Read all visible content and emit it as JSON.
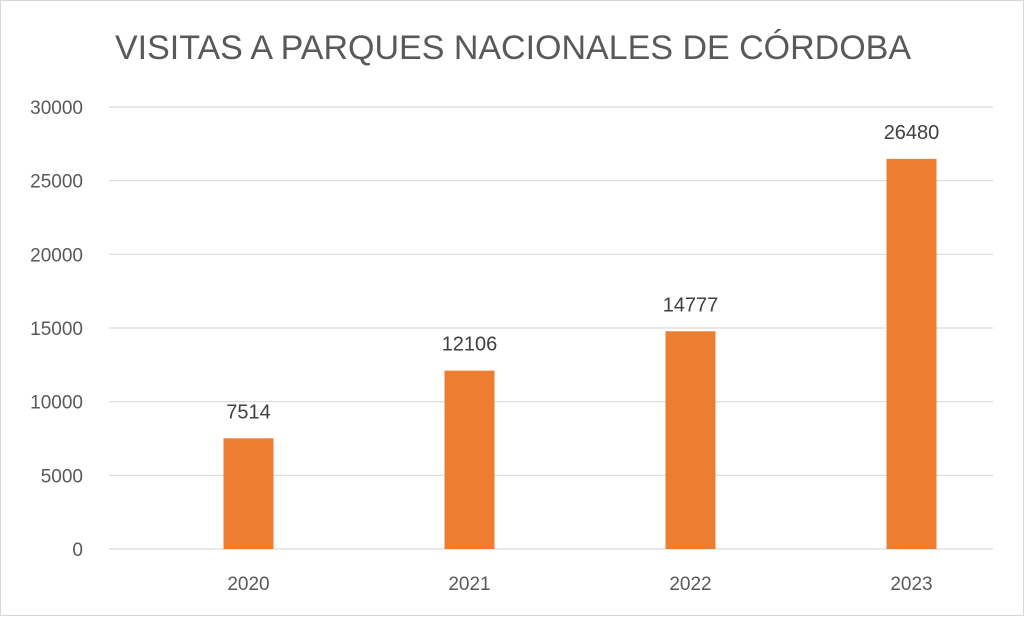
{
  "chart_data": {
    "type": "bar",
    "title": "VISITAS A PARQUES NACIONALES DE CÓRDOBA",
    "categories": [
      "2020",
      "2021",
      "2022",
      "2023"
    ],
    "values": [
      7514,
      12106,
      14777,
      26480
    ],
    "data_labels": [
      "7514",
      "12106",
      "14777",
      "26480"
    ],
    "xlabel": "",
    "ylabel": "",
    "ylim": [
      0,
      30000
    ],
    "yticks": [
      0,
      5000,
      10000,
      15000,
      20000,
      25000,
      30000
    ],
    "ytick_labels": [
      "0",
      "5000",
      "10000",
      "15000",
      "20000",
      "25000",
      "30000"
    ],
    "grid": true,
    "legend": "none",
    "colors": {
      "bar": "#ED7D31",
      "grid": "#D9D9D9",
      "text": "#595959"
    }
  }
}
